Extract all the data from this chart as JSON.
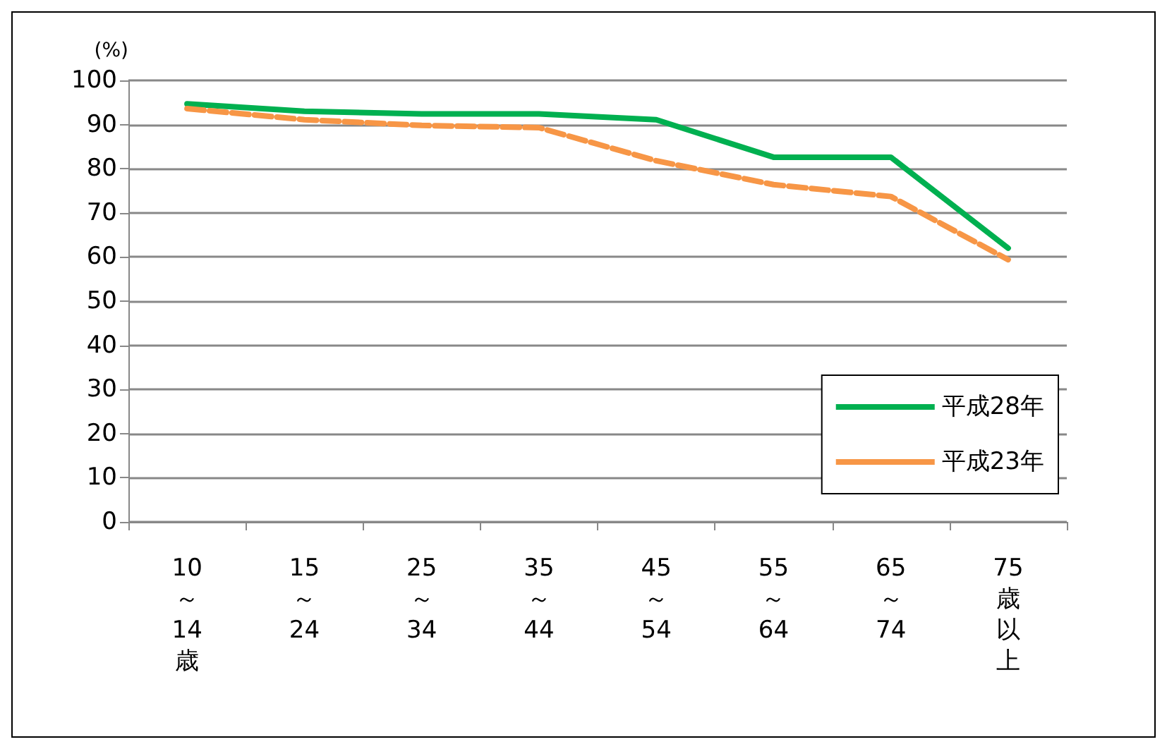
{
  "chart_data": {
    "type": "line",
    "ylabel": "(%)",
    "categories": [
      "10～14歳",
      "15～24",
      "25～34",
      "35～44",
      "45～54",
      "55～64",
      "65～74",
      "75歳以上"
    ],
    "series": [
      {
        "name": "平成28年",
        "color": "#00b050",
        "line_style": "solid",
        "values": [
          94.7,
          93,
          92.4,
          92.4,
          91.1,
          82.6,
          82.6,
          62
        ]
      },
      {
        "name": "平成23年",
        "color": "#f79646",
        "line_style": "dashed",
        "values": [
          93.6,
          91.1,
          89.8,
          89.3,
          81.8,
          76.4,
          73.7,
          59.4
        ]
      }
    ],
    "ylim": [
      0,
      100
    ],
    "yticks": [
      0,
      10,
      20,
      30,
      40,
      50,
      60,
      70,
      80,
      90,
      100
    ],
    "grid": "y",
    "legend": "bottom right",
    "marker": "none"
  }
}
